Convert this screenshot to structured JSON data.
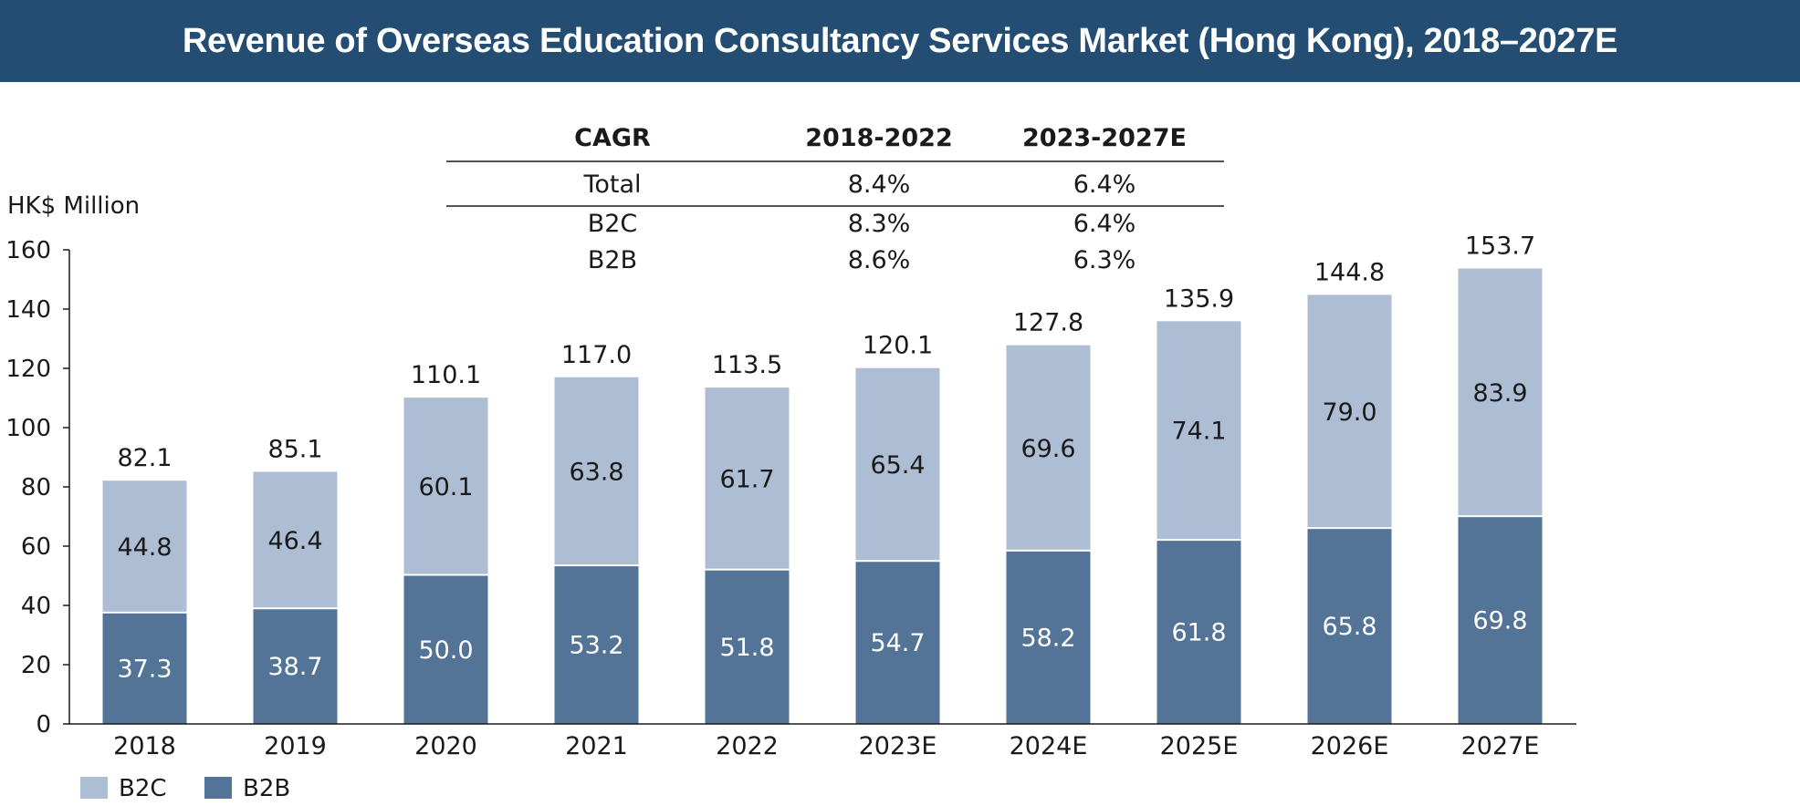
{
  "header": {
    "title": "Revenue of Overseas Education Consultancy Services Market (Hong Kong), 2018–2027E"
  },
  "cagr_table": {
    "headers": [
      "CAGR",
      "2018-2022",
      "2023-2027E"
    ],
    "rows": [
      [
        "Total",
        "8.4%",
        "6.4%"
      ],
      [
        "B2C",
        "8.3%",
        "6.4%"
      ],
      [
        "B2B",
        "8.6%",
        "6.3%"
      ]
    ]
  },
  "chart_data": {
    "type": "bar",
    "stacked": true,
    "title": "Revenue of Overseas Education Consultancy Services Market (Hong Kong), 2018–2027E",
    "xlabel": "",
    "ylabel": "HK$ Million",
    "ylim": [
      0,
      160
    ],
    "yticks": [
      0,
      20,
      40,
      60,
      80,
      100,
      120,
      140,
      160
    ],
    "grid": false,
    "legend_position": "bottom-left",
    "categories": [
      "2018",
      "2019",
      "2020",
      "2021",
      "2022",
      "2023E",
      "2024E",
      "2025E",
      "2026E",
      "2027E"
    ],
    "series": [
      {
        "name": "B2B",
        "color": "#537496",
        "values": [
          37.3,
          38.7,
          50.0,
          53.2,
          51.8,
          54.7,
          58.2,
          61.8,
          65.8,
          69.8
        ],
        "labels": [
          "37.3",
          "38.7",
          "50.0",
          "53.2",
          "51.8",
          "54.7",
          "58.2",
          "61.8",
          "65.8",
          "69.8"
        ]
      },
      {
        "name": "B2C",
        "color": "#adbdd3",
        "values": [
          44.8,
          46.4,
          60.1,
          63.8,
          61.7,
          65.4,
          69.6,
          74.1,
          79.0,
          83.9
        ],
        "labels": [
          "44.8",
          "46.4",
          "60.1",
          "63.8",
          "61.7",
          "65.4",
          "69.6",
          "74.1",
          "79.0",
          "83.9"
        ]
      }
    ],
    "totals": [
      82.1,
      85.1,
      110.1,
      117.0,
      113.5,
      120.1,
      127.8,
      135.9,
      144.8,
      153.7
    ],
    "total_labels": [
      "82.1",
      "85.1",
      "110.1",
      "117.0",
      "113.5",
      "120.1",
      "127.8",
      "135.9",
      "144.8",
      "153.7"
    ],
    "legend": [
      "B2C",
      "B2B"
    ]
  }
}
